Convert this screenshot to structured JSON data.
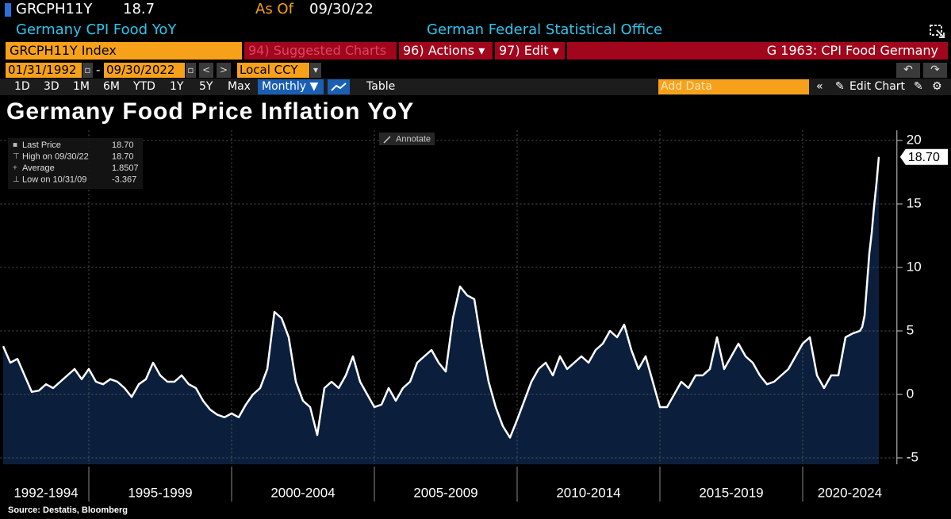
{
  "header": {
    "ticker": "GRCPH11Y",
    "price": "18.7",
    "as_of_label": "As Of",
    "as_of_date": "09/30/22",
    "description": "Germany CPI Food YoY",
    "source_name": "German Federal Statistical Office"
  },
  "toolbar": {
    "security": "GRCPH11Y Index",
    "suggested": "94) Suggested Charts",
    "actions": "96) Actions ▾",
    "edit": "97) Edit ▾",
    "chart_name": "G 1963: CPI Food Germany",
    "start_date": "01/31/1992",
    "dash": "-",
    "end_date": "09/30/2022",
    "currency": "Local CCY",
    "periods": [
      "1D",
      "3D",
      "1M",
      "6M",
      "YTD",
      "1Y",
      "5Y",
      "Max"
    ],
    "frequency": "Monthly ▼",
    "table": "Table",
    "add_data": "Add Data",
    "edit_chart": "Edit Chart"
  },
  "chart_data": {
    "type": "area",
    "title": "Germany Food Price Inflation YoY",
    "source": "Source: Destatis, Bloomberg",
    "annotate": "Annotate",
    "legend": [
      {
        "label": "Last Price",
        "value": "18.70"
      },
      {
        "label": "High on 09/30/22",
        "value": "18.70"
      },
      {
        "label": "Average",
        "value": "1.8507"
      },
      {
        "label": "Low on 10/31/09",
        "value": "-3.367"
      }
    ],
    "last_label": "18.70",
    "color": "#ffffff",
    "fill": "#0b1f3d",
    "grid": true,
    "x": [
      1992,
      1992.25,
      1992.5,
      1992.75,
      1993,
      1993.25,
      1993.5,
      1993.75,
      1994,
      1994.25,
      1994.5,
      1994.75,
      1995,
      1995.25,
      1995.5,
      1995.75,
      1996,
      1996.25,
      1996.5,
      1996.75,
      1997,
      1997.25,
      1997.5,
      1997.75,
      1998,
      1998.25,
      1998.5,
      1998.75,
      1999,
      1999.25,
      1999.5,
      1999.75,
      2000,
      2000.25,
      2000.5,
      2000.75,
      2001,
      2001.25,
      2001.5,
      2001.75,
      2002,
      2002.25,
      2002.5,
      2002.75,
      2003,
      2003.25,
      2003.5,
      2003.75,
      2004,
      2004.25,
      2004.5,
      2004.75,
      2005,
      2005.25,
      2005.5,
      2005.75,
      2006,
      2006.25,
      2006.5,
      2006.75,
      2007,
      2007.25,
      2007.5,
      2007.75,
      2008,
      2008.25,
      2008.5,
      2008.75,
      2009,
      2009.25,
      2009.5,
      2009.75,
      2010,
      2010.25,
      2010.5,
      2010.75,
      2011,
      2011.25,
      2011.5,
      2011.75,
      2012,
      2012.25,
      2012.5,
      2012.75,
      2013,
      2013.25,
      2013.5,
      2013.75,
      2014,
      2014.25,
      2014.5,
      2014.75,
      2015,
      2015.25,
      2015.5,
      2015.75,
      2016,
      2016.25,
      2016.5,
      2016.75,
      2017,
      2017.25,
      2017.5,
      2017.75,
      2018,
      2018.25,
      2018.5,
      2018.75,
      2019,
      2019.25,
      2019.5,
      2019.75,
      2020,
      2020.25,
      2020.5,
      2020.75,
      2021,
      2021.25,
      2021.5,
      2021.75,
      2022,
      2022.083,
      2022.167,
      2022.25,
      2022.333,
      2022.417,
      2022.5,
      2022.583,
      2022.667
    ],
    "values": [
      3.8,
      2.5,
      2.8,
      1.5,
      0.2,
      0.3,
      0.8,
      0.5,
      1.0,
      1.5,
      2.0,
      1.2,
      2.0,
      1.0,
      0.8,
      1.2,
      1.0,
      0.5,
      -0.2,
      0.8,
      1.2,
      2.5,
      1.5,
      1.0,
      1.0,
      1.5,
      0.8,
      0.5,
      -0.5,
      -1.2,
      -1.6,
      -1.8,
      -1.5,
      -1.8,
      -0.8,
      0.0,
      0.5,
      2.0,
      6.5,
      6.0,
      4.5,
      1.0,
      -0.5,
      -1.0,
      -3.2,
      0.5,
      1.0,
      0.5,
      1.5,
      3.0,
      1.0,
      0.0,
      -1.0,
      -0.8,
      0.5,
      -0.5,
      0.5,
      1.0,
      2.5,
      3.0,
      3.5,
      2.5,
      1.8,
      6.0,
      8.5,
      7.8,
      7.5,
      4.0,
      1.0,
      -1.0,
      -2.5,
      -3.4,
      -2.0,
      -0.5,
      1.0,
      2.0,
      2.5,
      1.5,
      3.0,
      2.0,
      2.5,
      3.0,
      2.5,
      3.5,
      4.0,
      5.0,
      4.5,
      5.5,
      3.5,
      2.0,
      3.0,
      1.0,
      -1.0,
      -1.0,
      0.0,
      1.0,
      0.5,
      1.5,
      1.5,
      2.0,
      4.5,
      2.0,
      3.0,
      4.0,
      3.0,
      2.5,
      1.5,
      0.8,
      1.0,
      1.5,
      2.0,
      3.0,
      4.0,
      4.5,
      1.5,
      0.5,
      1.5,
      1.5,
      4.5,
      4.8,
      5.0,
      5.3,
      6.2,
      8.6,
      11.1,
      12.7,
      14.8,
      16.6,
      18.7
    ],
    "xlim": [
      1991.9,
      2023.3
    ],
    "ylim": [
      -5.5,
      20.8
    ],
    "yticks": [
      -5,
      0,
      5,
      10,
      15,
      20
    ],
    "x_bands": [
      {
        "label": "1992-1994",
        "start": 1992,
        "end": 1995
      },
      {
        "label": "1995-1999",
        "start": 1995,
        "end": 2000
      },
      {
        "label": "2000-2004",
        "start": 2000,
        "end": 2005
      },
      {
        "label": "2005-2009",
        "start": 2005,
        "end": 2010
      },
      {
        "label": "2010-2014",
        "start": 2010,
        "end": 2015
      },
      {
        "label": "2015-2019",
        "start": 2015,
        "end": 2020
      },
      {
        "label": "2020-2024",
        "start": 2020,
        "end": 2025
      }
    ]
  }
}
